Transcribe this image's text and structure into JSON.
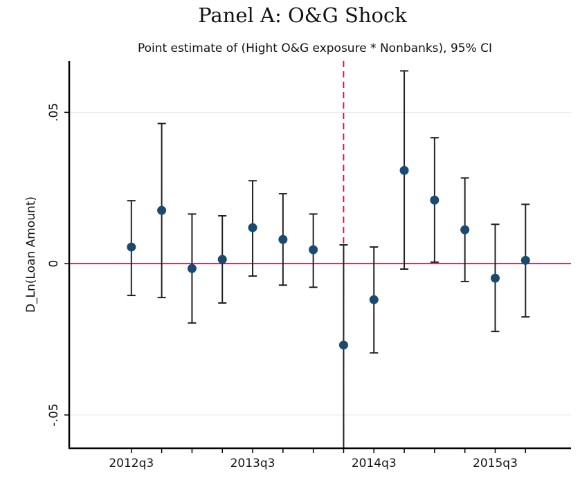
{
  "chart_data": {
    "type": "coefplot",
    "title": "Panel A: O&G Shock",
    "subtitle": "Point estimate of (Hight O&G exposure * Nonbanks), 95% CI",
    "ylabel": "D_Ln(Loan Amount)",
    "categories": [
      "2012q3",
      null,
      null,
      null,
      "2013q3",
      null,
      null,
      null,
      "2014q3",
      null,
      null,
      null,
      "2015q3",
      null
    ],
    "x_offset_before": 2.05,
    "x_offset_after": 1.5,
    "values": [
      0.0055,
      0.0176,
      -0.0016,
      0.0014,
      0.0119,
      0.008,
      0.0046,
      -0.0269,
      -0.0119,
      0.0308,
      0.021,
      0.0112,
      -0.0048,
      0.0011
    ],
    "ci_low": [
      -0.0105,
      -0.0112,
      -0.0196,
      -0.013,
      -0.0041,
      -0.0071,
      -0.0078,
      -0.066,
      -0.0295,
      -0.0018,
      0.0005,
      -0.0059,
      -0.0224,
      -0.0176
    ],
    "ci_high": [
      0.0208,
      0.0463,
      0.0164,
      0.0158,
      0.0274,
      0.0231,
      0.0164,
      0.0062,
      0.0055,
      0.0637,
      0.0416,
      0.0283,
      0.013,
      0.0196
    ],
    "color": "#1a4a72",
    "ci_color": "#222222",
    "ylim": [
      -0.061,
      0.067
    ],
    "yticks": [
      {
        "value": -0.05,
        "label": "-.05"
      },
      0,
      {
        "value": 0.05,
        "label": ".05"
      }
    ],
    "grid": true,
    "hline": 0,
    "hline_color": "#d0103a",
    "vline_index": 7,
    "vline_color": "#d0103a"
  }
}
